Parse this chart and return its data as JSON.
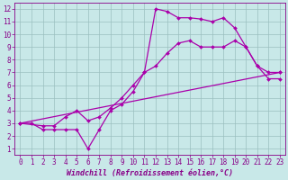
{
  "background_color": "#c8e8e8",
  "grid_color": "#9bbfbf",
  "line_color": "#aa00aa",
  "marker": "D",
  "markersize": 2,
  "linewidth": 0.9,
  "xlim": [
    -0.5,
    23.5
  ],
  "ylim": [
    0.5,
    12.5
  ],
  "xticks": [
    0,
    1,
    2,
    3,
    4,
    5,
    6,
    7,
    8,
    9,
    10,
    11,
    12,
    13,
    14,
    15,
    16,
    17,
    18,
    19,
    20,
    21,
    22,
    23
  ],
  "yticks": [
    1,
    2,
    3,
    4,
    5,
    6,
    7,
    8,
    9,
    10,
    11,
    12
  ],
  "xlabel": "Windchill (Refroidissement éolien,°C)",
  "xlabel_fontsize": 6,
  "tick_fontsize": 5.5,
  "series1_x": [
    0,
    1,
    2,
    3,
    4,
    5,
    6,
    7,
    8,
    9,
    10,
    11,
    12,
    13,
    14,
    15,
    16,
    17,
    18,
    19,
    20,
    21,
    22,
    23
  ],
  "series1_y": [
    3,
    3,
    2.5,
    2.5,
    2.5,
    2.5,
    1,
    2.5,
    4,
    4.5,
    5.5,
    7,
    12,
    11.8,
    11.3,
    11.3,
    11.2,
    11,
    11.3,
    10.5,
    9,
    7.5,
    7,
    7
  ],
  "series2_x": [
    0,
    2,
    3,
    4,
    5,
    6,
    7,
    8,
    9,
    10,
    11,
    12,
    13,
    14,
    15,
    16,
    17,
    18,
    19,
    20,
    21,
    22,
    23
  ],
  "series2_y": [
    3,
    2.8,
    2.8,
    3.5,
    4,
    3.2,
    3.5,
    4.2,
    5,
    6,
    7,
    7.5,
    8.5,
    9.3,
    9.5,
    9,
    9,
    9,
    9.5,
    9,
    7.5,
    6.5,
    6.5
  ],
  "series3_x": [
    0,
    23
  ],
  "series3_y": [
    3,
    7
  ],
  "label_color": "#880088",
  "spine_color": "#880088"
}
